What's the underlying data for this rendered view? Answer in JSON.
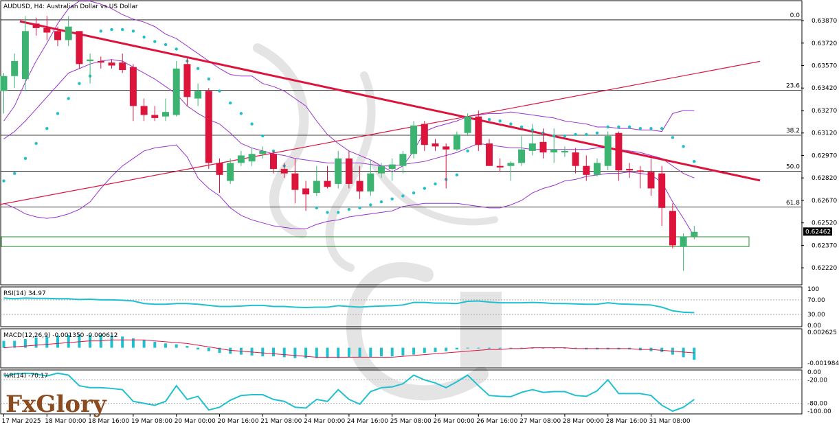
{
  "header": {
    "title": "AUDUSD, H4:  Australian Dollar vs US Dollar"
  },
  "logo": {
    "text": "FxGlory"
  },
  "colors": {
    "bull": "#3cb371",
    "bear": "#dc143c",
    "channel": "#9932cc",
    "sar": "#20c0c8",
    "trendline": "#dc143c",
    "indicator": "#20c0d0",
    "macd_signal": "#dc143c",
    "grid": "#000000",
    "zone": "#2e8b2e"
  },
  "chart_data": {
    "type": "candlestick",
    "symbol": "AUDUSD",
    "timeframe": "H4",
    "title": "AUDUSD, H4:  Australian Dollar vs US Dollar",
    "current_price": "0.62462",
    "price_axis": {
      "range": [
        0.6212,
        0.6398
      ],
      "ticks": [
        "0.63870",
        "0.63720",
        "0.63570",
        "0.63420",
        "0.63270",
        "0.63120",
        "0.62970",
        "0.62820",
        "0.62670",
        "0.62520",
        "0.62370",
        "0.62220"
      ]
    },
    "fibonacci": [
      {
        "label": "0.0",
        "price": 0.63875
      },
      {
        "label": "23.6",
        "price": 0.63405
      },
      {
        "label": "38.2",
        "price": 0.63105
      },
      {
        "label": "50.0",
        "price": 0.62865
      },
      {
        "label": "61.8",
        "price": 0.62625
      }
    ],
    "support_zone": {
      "top": 0.62427,
      "bottom": 0.62362
    },
    "time_labels": [
      "17 Mar 2025",
      "18 Mar 00:00",
      "18 Mar 16:00",
      "19 Mar 08:00",
      "20 Mar 00:00",
      "20 Mar 16:00",
      "21 Mar 08:00",
      "24 Mar 00:00",
      "24 Mar 16:00",
      "25 Mar 08:00",
      "26 Mar 00:00",
      "26 Mar 16:00",
      "27 Mar 08:00",
      "28 Mar 00:00",
      "28 Mar 16:00",
      "31 Mar 08:00"
    ],
    "candles": [
      {
        "o": 0.634,
        "h": 0.6352,
        "l": 0.6325,
        "c": 0.635
      },
      {
        "o": 0.635,
        "h": 0.6365,
        "l": 0.6342,
        "c": 0.636
      },
      {
        "o": 0.6348,
        "h": 0.639,
        "l": 0.634,
        "c": 0.638
      },
      {
        "o": 0.6385,
        "h": 0.6389,
        "l": 0.6377,
        "c": 0.6382
      },
      {
        "o": 0.6382,
        "h": 0.639,
        "l": 0.6374,
        "c": 0.6379
      },
      {
        "o": 0.638,
        "h": 0.6383,
        "l": 0.637,
        "c": 0.6374
      },
      {
        "o": 0.6374,
        "h": 0.639,
        "l": 0.637,
        "c": 0.6383
      },
      {
        "o": 0.638,
        "h": 0.638,
        "l": 0.6355,
        "c": 0.6358
      },
      {
        "o": 0.636,
        "h": 0.6365,
        "l": 0.6345,
        "c": 0.6361
      },
      {
        "o": 0.636,
        "h": 0.6363,
        "l": 0.6355,
        "c": 0.6359
      },
      {
        "o": 0.6359,
        "h": 0.6361,
        "l": 0.6355,
        "c": 0.6357
      },
      {
        "o": 0.6359,
        "h": 0.6365,
        "l": 0.6352,
        "c": 0.6354
      },
      {
        "o": 0.6356,
        "h": 0.6358,
        "l": 0.632,
        "c": 0.633
      },
      {
        "o": 0.633,
        "h": 0.6335,
        "l": 0.632,
        "c": 0.6324
      },
      {
        "o": 0.6324,
        "h": 0.633,
        "l": 0.632,
        "c": 0.6322
      },
      {
        "o": 0.6323,
        "h": 0.6335,
        "l": 0.632,
        "c": 0.6326
      },
      {
        "o": 0.6324,
        "h": 0.636,
        "l": 0.6323,
        "c": 0.6355
      },
      {
        "o": 0.6358,
        "h": 0.6363,
        "l": 0.633,
        "c": 0.6336
      },
      {
        "o": 0.6335,
        "h": 0.6345,
        "l": 0.633,
        "c": 0.634
      },
      {
        "o": 0.634,
        "h": 0.6342,
        "l": 0.6288,
        "c": 0.6292
      },
      {
        "o": 0.6292,
        "h": 0.6295,
        "l": 0.6272,
        "c": 0.6284
      },
      {
        "o": 0.628,
        "h": 0.6295,
        "l": 0.6278,
        "c": 0.6292
      },
      {
        "o": 0.6292,
        "h": 0.63,
        "l": 0.629,
        "c": 0.6297
      },
      {
        "o": 0.6293,
        "h": 0.6302,
        "l": 0.629,
        "c": 0.6298
      },
      {
        "o": 0.6298,
        "h": 0.6303,
        "l": 0.6295,
        "c": 0.63
      },
      {
        "o": 0.6298,
        "h": 0.63,
        "l": 0.6285,
        "c": 0.6288
      },
      {
        "o": 0.6288,
        "h": 0.6292,
        "l": 0.6282,
        "c": 0.6285
      },
      {
        "o": 0.6285,
        "h": 0.6295,
        "l": 0.6265,
        "c": 0.6274
      },
      {
        "o": 0.6275,
        "h": 0.628,
        "l": 0.626,
        "c": 0.6271
      },
      {
        "o": 0.6272,
        "h": 0.629,
        "l": 0.627,
        "c": 0.628
      },
      {
        "o": 0.628,
        "h": 0.629,
        "l": 0.6275,
        "c": 0.6276
      },
      {
        "o": 0.6278,
        "h": 0.63,
        "l": 0.6275,
        "c": 0.6295
      },
      {
        "o": 0.6295,
        "h": 0.63,
        "l": 0.6275,
        "c": 0.6278
      },
      {
        "o": 0.628,
        "h": 0.629,
        "l": 0.6268,
        "c": 0.6273
      },
      {
        "o": 0.6273,
        "h": 0.6294,
        "l": 0.627,
        "c": 0.6285
      },
      {
        "o": 0.6285,
        "h": 0.6292,
        "l": 0.6282,
        "c": 0.629
      },
      {
        "o": 0.6288,
        "h": 0.6295,
        "l": 0.628,
        "c": 0.6291
      },
      {
        "o": 0.629,
        "h": 0.63,
        "l": 0.6285,
        "c": 0.6298
      },
      {
        "o": 0.6298,
        "h": 0.632,
        "l": 0.6295,
        "c": 0.6317
      },
      {
        "o": 0.6318,
        "h": 0.632,
        "l": 0.63,
        "c": 0.6304
      },
      {
        "o": 0.6305,
        "h": 0.6308,
        "l": 0.63,
        "c": 0.6303
      },
      {
        "o": 0.6303,
        "h": 0.6305,
        "l": 0.6275,
        "c": 0.6301
      },
      {
        "o": 0.6301,
        "h": 0.6313,
        "l": 0.63,
        "c": 0.6311
      },
      {
        "o": 0.6312,
        "h": 0.6325,
        "l": 0.631,
        "c": 0.6323
      },
      {
        "o": 0.6323,
        "h": 0.6327,
        "l": 0.63,
        "c": 0.6304
      },
      {
        "o": 0.6305,
        "h": 0.6308,
        "l": 0.629,
        "c": 0.629
      },
      {
        "o": 0.629,
        "h": 0.6295,
        "l": 0.6286,
        "c": 0.6289
      },
      {
        "o": 0.629,
        "h": 0.6293,
        "l": 0.628,
        "c": 0.6292
      },
      {
        "o": 0.6292,
        "h": 0.631,
        "l": 0.629,
        "c": 0.6301
      },
      {
        "o": 0.63,
        "h": 0.6318,
        "l": 0.6297,
        "c": 0.6305
      },
      {
        "o": 0.6306,
        "h": 0.6315,
        "l": 0.6295,
        "c": 0.6299
      },
      {
        "o": 0.6299,
        "h": 0.6315,
        "l": 0.6292,
        "c": 0.6301
      },
      {
        "o": 0.6299,
        "h": 0.6303,
        "l": 0.6296,
        "c": 0.63
      },
      {
        "o": 0.6299,
        "h": 0.6302,
        "l": 0.6285,
        "c": 0.629
      },
      {
        "o": 0.629,
        "h": 0.6297,
        "l": 0.628,
        "c": 0.6284
      },
      {
        "o": 0.6284,
        "h": 0.6295,
        "l": 0.6283,
        "c": 0.6292
      },
      {
        "o": 0.629,
        "h": 0.6313,
        "l": 0.6287,
        "c": 0.631
      },
      {
        "o": 0.6312,
        "h": 0.6313,
        "l": 0.628,
        "c": 0.6287
      },
      {
        "o": 0.6288,
        "h": 0.6292,
        "l": 0.6282,
        "c": 0.6287
      },
      {
        "o": 0.6287,
        "h": 0.629,
        "l": 0.6275,
        "c": 0.6286
      },
      {
        "o": 0.6286,
        "h": 0.6295,
        "l": 0.627,
        "c": 0.6275
      },
      {
        "o": 0.6285,
        "h": 0.629,
        "l": 0.625,
        "c": 0.6262
      },
      {
        "o": 0.626,
        "h": 0.6265,
        "l": 0.6235,
        "c": 0.6237
      },
      {
        "o": 0.6236,
        "h": 0.6245,
        "l": 0.622,
        "c": 0.6243
      },
      {
        "o": 0.6243,
        "h": 0.625,
        "l": 0.6241,
        "c": 0.6246
      }
    ],
    "psar": [
      0.628,
      0.6285,
      0.6295,
      0.6305,
      0.6315,
      0.6325,
      0.6335,
      0.6345,
      0.635,
      0.638,
      0.6381,
      0.6381,
      0.638,
      0.6376,
      0.6373,
      0.6371,
      0.6368,
      0.636,
      0.6355,
      0.6348,
      0.634,
      0.6332,
      0.6325,
      0.6318,
      0.631,
      0.63,
      0.629,
      0.628,
      0.6272,
      0.6262,
      0.6259,
      0.6259,
      0.6261,
      0.6262,
      0.6264,
      0.6266,
      0.6268,
      0.627,
      0.6272,
      0.6275,
      0.6278,
      0.6281,
      0.6284,
      0.63,
      0.6316,
      0.6321,
      0.632,
      0.6318,
      0.6316,
      0.6314,
      0.6312,
      0.631,
      0.631,
      0.6311,
      0.6311,
      0.6312,
      0.6316,
      0.6316,
      0.6316,
      0.6315,
      0.6315,
      0.6315,
      0.6309,
      0.6303,
      0.6293
    ],
    "bollinger": {
      "upper": [
        0.632,
        0.633,
        0.6346,
        0.636,
        0.6372,
        0.6385,
        0.6395,
        0.64,
        0.64,
        0.6398,
        0.6395,
        0.6391,
        0.6388,
        0.6386,
        0.6383,
        0.6378,
        0.6375,
        0.637,
        0.6365,
        0.636,
        0.6355,
        0.6351,
        0.635,
        0.635,
        0.6345,
        0.6343,
        0.634,
        0.6335,
        0.633,
        0.632,
        0.6311,
        0.6305,
        0.63,
        0.6297,
        0.6294,
        0.629,
        0.6286,
        0.629,
        0.63,
        0.6313,
        0.6316,
        0.6318,
        0.632,
        0.6323,
        0.6324,
        0.6325,
        0.6325,
        0.6326,
        0.6325,
        0.6324,
        0.6323,
        0.6322,
        0.632,
        0.6319,
        0.6318,
        0.6316,
        0.6316,
        0.6315,
        0.6315,
        0.6314,
        0.6314,
        0.6313,
        0.6325,
        0.6327,
        0.6327
      ],
      "middle": [
        0.6308,
        0.6313,
        0.632,
        0.6328,
        0.6336,
        0.6344,
        0.6352,
        0.6355,
        0.6358,
        0.636,
        0.6361,
        0.636,
        0.6356,
        0.6352,
        0.6348,
        0.6343,
        0.6338,
        0.633,
        0.6325,
        0.6321,
        0.6318,
        0.6312,
        0.6305,
        0.6302,
        0.63,
        0.6298,
        0.6297,
        0.6295,
        0.6294,
        0.6293,
        0.6292,
        0.6292,
        0.6292,
        0.6292,
        0.6291,
        0.629,
        0.629,
        0.6291,
        0.6292,
        0.6293,
        0.6295,
        0.6297,
        0.6299,
        0.6302,
        0.6305,
        0.6304,
        0.6303,
        0.6302,
        0.6302,
        0.6301,
        0.6301,
        0.6301,
        0.6301,
        0.6301,
        0.6301,
        0.6302,
        0.6302,
        0.6301,
        0.63,
        0.6299,
        0.6297,
        0.6295,
        0.629,
        0.6285,
        0.6282
      ],
      "lower": [
        0.6265,
        0.6262,
        0.6258,
        0.6256,
        0.6255,
        0.6256,
        0.6258,
        0.6261,
        0.6266,
        0.6275,
        0.6283,
        0.629,
        0.6295,
        0.63,
        0.6302,
        0.6303,
        0.6304,
        0.6296,
        0.6282,
        0.6275,
        0.627,
        0.6262,
        0.6257,
        0.6254,
        0.6252,
        0.625,
        0.6249,
        0.6248,
        0.6248,
        0.6251,
        0.6253,
        0.6254,
        0.6256,
        0.6257,
        0.6258,
        0.6259,
        0.626,
        0.6263,
        0.6264,
        0.6265,
        0.6265,
        0.6265,
        0.6265,
        0.6264,
        0.6263,
        0.6262,
        0.6262,
        0.6264,
        0.6267,
        0.6272,
        0.6275,
        0.6277,
        0.628,
        0.6281,
        0.6283,
        0.6284,
        0.6285,
        0.6285,
        0.6286,
        0.6285,
        0.6284,
        0.6279,
        0.6266,
        0.6255,
        0.6243
      ]
    },
    "trend_lines": [
      {
        "name": "downtrend",
        "from": {
          "bar": 1.5,
          "price": 0.63865
        },
        "to": {
          "bar": 70.1,
          "price": 0.62803
        }
      },
      {
        "name": "uptrend",
        "from": {
          "bar": -0.4,
          "price": 0.62642
        },
        "to": {
          "bar": 70.1,
          "price": 0.63598
        }
      }
    ],
    "rsi": {
      "label": "RSI(14) 34.97",
      "period": 14,
      "value": 34.97,
      "ticks": [
        "100",
        "70.00",
        "30.00",
        "0.00"
      ],
      "values": [
        75,
        73,
        75,
        74,
        74,
        73,
        73,
        71,
        72,
        70,
        70,
        69,
        67,
        60,
        58,
        58,
        60,
        60,
        58,
        55,
        52,
        52,
        53,
        55,
        55,
        52,
        52,
        50,
        49,
        50,
        50,
        54,
        52,
        50,
        52,
        53,
        54,
        56,
        63,
        63,
        61,
        61,
        60,
        66,
        67,
        64,
        62,
        62,
        62,
        63,
        62,
        60,
        60,
        59,
        58,
        58,
        62,
        59,
        58,
        57,
        56,
        50,
        40,
        36,
        35
      ]
    },
    "macd": {
      "label": "MACD(12,26,9) -0.001350 -0.000612",
      "params": "12,26,9",
      "main": -0.00135,
      "signal": -0.000612,
      "ticks": [
        "0.002625",
        "-0.001984"
      ],
      "histogram": [
        0.0008,
        0.0008,
        0.001,
        0.0012,
        0.0013,
        0.0014,
        0.0015,
        0.0015,
        0.0015,
        0.0015,
        0.0014,
        0.0013,
        0.0011,
        0.0009,
        0.0007,
        0.0005,
        0.0004,
        0.0002,
        -0.0002,
        -0.0004,
        -0.0006,
        -0.0007,
        -0.0008,
        -0.0009,
        -0.001,
        -0.001,
        -0.0011,
        -0.0012,
        -0.0012,
        -0.0012,
        -0.0012,
        -0.0012,
        -0.0011,
        -0.0011,
        -0.0011,
        -0.001,
        -0.001,
        -0.0009,
        -0.0008,
        -0.0006,
        -0.0005,
        -0.0004,
        -0.0002,
        0.0,
        0.0,
        -0.0001,
        -0.0001,
        -0.0001,
        -0.0001,
        -0.0001,
        -0.0001,
        -0.0001,
        -0.0001,
        -0.0001,
        -0.0002,
        -0.0002,
        -0.0002,
        -0.0002,
        -0.0002,
        -0.0003,
        -0.0004,
        -0.0005,
        -0.0008,
        -0.0011,
        -0.0014
      ],
      "signal_line": [
        0.0,
        0.0001,
        0.0002,
        0.0003,
        0.0004,
        0.0005,
        0.0006,
        0.0007,
        0.0008,
        0.0008,
        0.0009,
        0.0009,
        0.0009,
        0.0009,
        0.0008,
        0.0007,
        0.0006,
        0.0005,
        0.0003,
        0.0001,
        -0.0001,
        -0.0003,
        -0.0004,
        -0.0005,
        -0.0006,
        -0.0007,
        -0.0008,
        -0.0009,
        -0.001,
        -0.0011,
        -0.0011,
        -0.0011,
        -0.0011,
        -0.0011,
        -0.0011,
        -0.0011,
        -0.0011,
        -0.001,
        -0.0009,
        -0.0008,
        -0.0007,
        -0.0006,
        -0.0005,
        -0.0004,
        -0.0003,
        -0.0002,
        -0.0002,
        -0.0001,
        -0.0001,
        0.0,
        0.0,
        0.0,
        0.0,
        -0.0001,
        -0.0001,
        -0.0001,
        -0.0001,
        -0.0001,
        -0.0001,
        -0.0002,
        -0.0002,
        -0.0003,
        -0.0004,
        -0.0005,
        -0.0006
      ]
    },
    "williams_r": {
      "label": "%R(14) -70.17",
      "period": 14,
      "value": -70.17,
      "ticks": [
        "0.00",
        "-20.00",
        "-80.00",
        "-100.00"
      ],
      "values": [
        -10,
        -5,
        -3,
        -5,
        -10,
        -3,
        -8,
        -35,
        -40,
        -40,
        -42,
        -45,
        -75,
        -80,
        -85,
        -75,
        -35,
        -70,
        -62,
        -97,
        -90,
        -72,
        -60,
        -58,
        -58,
        -70,
        -75,
        -90,
        -92,
        -70,
        -75,
        -45,
        -70,
        -82,
        -50,
        -40,
        -38,
        -30,
        -8,
        -20,
        -28,
        -40,
        -25,
        -8,
        -35,
        -60,
        -62,
        -63,
        -52,
        -45,
        -52,
        -50,
        -50,
        -60,
        -62,
        -48,
        -20,
        -55,
        -55,
        -55,
        -60,
        -85,
        -100,
        -90,
        -70
      ]
    }
  }
}
